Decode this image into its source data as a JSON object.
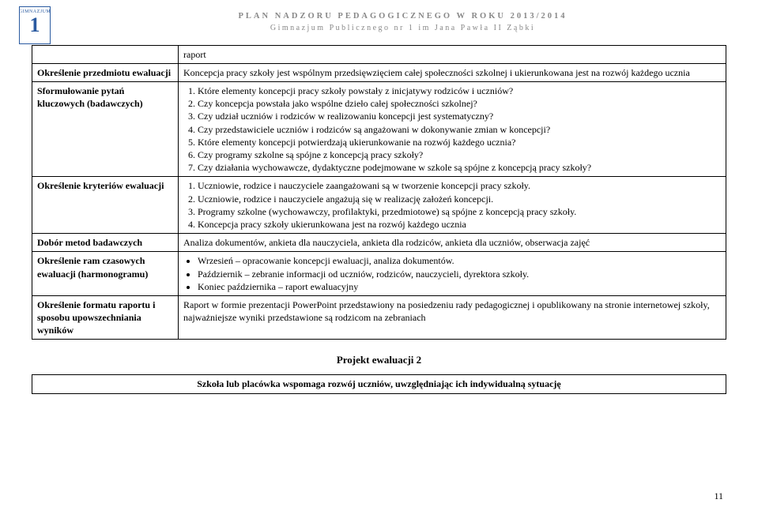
{
  "header": {
    "line1": "PLAN NADZORU PEDAGOGICZNEGO W ROKU 2013/2014",
    "line2": "Gimnazjum Publicznego nr 1 im Jana Pawła II Ząbki"
  },
  "logo": {
    "top": "GIMNAZJUM",
    "num": "1"
  },
  "rows": {
    "r0": {
      "label": "",
      "content": "raport"
    },
    "r1": {
      "label": "Określenie przedmiotu ewaluacji",
      "content": "Koncepcja pracy szkoły jest wspólnym przedsięwzięciem całej społeczności szkolnej i ukierunkowana jest na rozwój każdego ucznia"
    },
    "r2": {
      "label": "Sformułowanie pytań kluczowych (badawczych)",
      "items": [
        "Które elementy koncepcji pracy szkoły powstały z inicjatywy rodziców i uczniów?",
        "Czy koncepcja powstała jako wspólne dzieło całej społeczności szkolnej?",
        "Czy udział uczniów i rodziców w realizowaniu koncepcji jest systematyczny?",
        "Czy przedstawiciele uczniów i rodziców są angażowani w dokonywanie zmian w koncepcji?",
        "Które elementy koncepcji potwierdzają ukierunkowanie na rozwój każdego ucznia?",
        "Czy programy szkolne są spójne z koncepcją pracy szkoły?",
        "Czy działania wychowawcze, dydaktyczne podejmowane w szkole są spójne z koncepcją pracy szkoły?"
      ]
    },
    "r3": {
      "label": "Określenie kryteriów ewaluacji",
      "items": [
        "Uczniowie, rodzice i nauczyciele zaangażowani są w tworzenie koncepcji pracy szkoły.",
        "Uczniowie, rodzice i nauczyciele angażują się w realizację założeń koncepcji.",
        "Programy szkolne (wychowawczy, profilaktyki, przedmiotowe) są spójne z koncepcją pracy szkoły.",
        "Koncepcja pracy szkoły ukierunkowana jest na rozwój każdego ucznia"
      ]
    },
    "r4": {
      "label": "Dobór metod badawczych",
      "content": "Analiza dokumentów, ankieta dla nauczyciela, ankieta dla rodziców, ankieta dla uczniów, obserwacja zajęć"
    },
    "r5": {
      "label": "Określenie ram czasowych ewaluacji (harmonogramu)",
      "items": [
        "Wrzesień – opracowanie koncepcji ewaluacji, analiza dokumentów.",
        "Październik – zebranie informacji od uczniów, rodziców, nauczycieli, dyrektora szkoły.",
        "Koniec października – raport ewaluacyjny"
      ]
    },
    "r6": {
      "label": "Określenie formatu raportu i sposobu upowszechniania wyników",
      "content": "Raport w formie prezentacji PowerPoint przedstawiony na posiedzeniu rady pedagogicznej i opublikowany na stronie internetowej szkoły, najważniejsze wyniki przedstawione są rodzicom na zebraniach"
    }
  },
  "project_title": "Projekt ewaluacji 2",
  "sub_row": "Szkoła lub placówka wspomaga rozwój uczniów, uwzględniając ich indywidualną sytuację",
  "page_num": "11"
}
